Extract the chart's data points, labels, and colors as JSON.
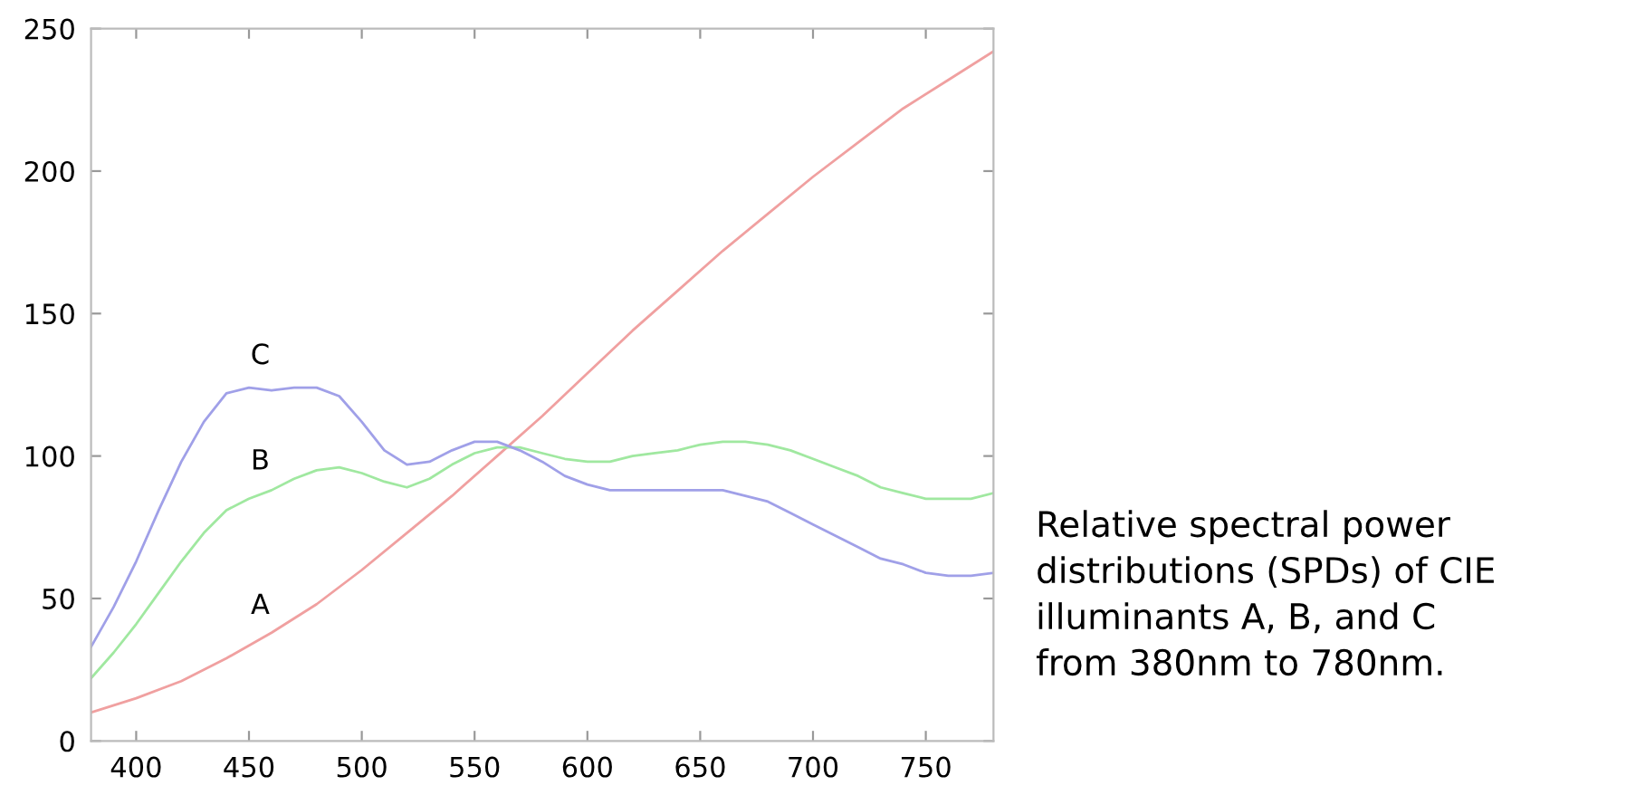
{
  "chart_data": {
    "type": "line",
    "xlim": [
      380,
      780
    ],
    "ylim": [
      0,
      250
    ],
    "xticks": [
      400,
      450,
      500,
      550,
      600,
      650,
      700,
      750
    ],
    "yticks": [
      0,
      50,
      100,
      150,
      200,
      250
    ],
    "grid": false,
    "legend": false,
    "series": [
      {
        "name": "A",
        "color": "#f0a0a0",
        "x": [
          380,
          400,
          420,
          440,
          460,
          480,
          500,
          520,
          540,
          560,
          580,
          600,
          620,
          640,
          660,
          680,
          700,
          720,
          740,
          760,
          780
        ],
        "values": [
          10,
          15,
          21,
          29,
          38,
          48,
          60,
          73,
          86,
          100,
          114,
          129,
          144,
          158,
          172,
          185,
          198,
          210,
          222,
          232,
          242
        ]
      },
      {
        "name": "B",
        "color": "#a0e8a0",
        "x": [
          380,
          390,
          400,
          410,
          420,
          430,
          440,
          450,
          460,
          470,
          480,
          490,
          500,
          510,
          520,
          530,
          540,
          550,
          560,
          570,
          580,
          590,
          600,
          610,
          620,
          630,
          640,
          650,
          660,
          670,
          680,
          690,
          700,
          710,
          720,
          730,
          740,
          750,
          760,
          770,
          780
        ],
        "values": [
          22,
          31,
          41,
          52,
          63,
          73,
          81,
          85,
          88,
          92,
          95,
          96,
          94,
          91,
          89,
          92,
          97,
          101,
          103,
          103,
          101,
          99,
          98,
          98,
          100,
          101,
          102,
          104,
          105,
          105,
          104,
          102,
          99,
          96,
          93,
          89,
          87,
          85,
          85,
          85,
          87
        ]
      },
      {
        "name": "C",
        "color": "#a0a0e8",
        "x": [
          380,
          390,
          400,
          410,
          420,
          430,
          440,
          450,
          460,
          470,
          480,
          490,
          500,
          510,
          520,
          530,
          540,
          550,
          560,
          570,
          580,
          590,
          600,
          610,
          620,
          630,
          640,
          650,
          660,
          670,
          680,
          690,
          700,
          710,
          720,
          730,
          740,
          750,
          760,
          770,
          780
        ],
        "values": [
          33,
          47,
          63,
          81,
          98,
          112,
          122,
          124,
          123,
          124,
          124,
          121,
          112,
          102,
          97,
          98,
          102,
          105,
          105,
          102,
          98,
          93,
          90,
          88,
          88,
          88,
          88,
          88,
          88,
          86,
          84,
          80,
          76,
          72,
          68,
          64,
          62,
          59,
          58,
          58,
          59
        ]
      }
    ],
    "annotations": [
      "Relative spectral power\ndistributions (SPDs) of CIE\nilluminants A, B, and C\nfrom 380nm to 780nm."
    ]
  }
}
